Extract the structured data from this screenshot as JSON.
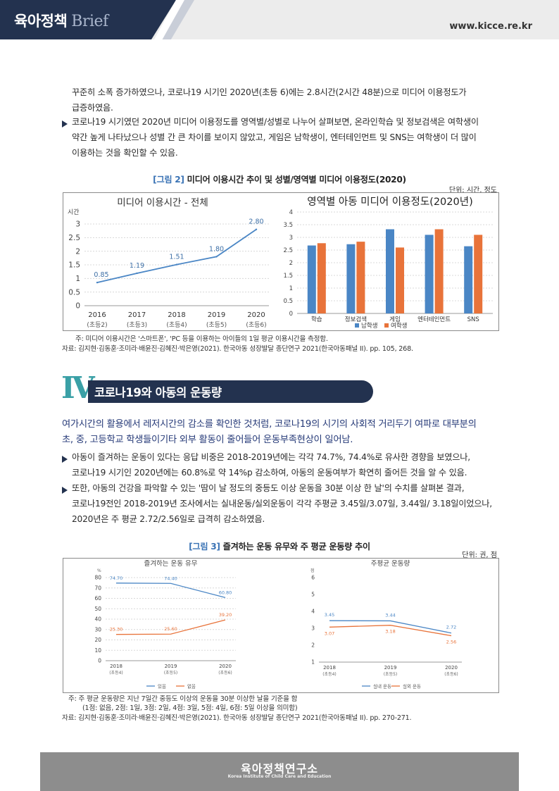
{
  "header": {
    "brand": "육아정책",
    "brand_sub": "Brief",
    "site_url": "www.kicce.re.kr"
  },
  "intro": {
    "line1": "꾸준히 소폭 증가하였으나, 코로나19 시기인 2020년(초등 6)에는 2.8시간(2시간 48분)으로 미디어 이용정도가",
    "line2": "급증하였음.",
    "bullet1": [
      "코로나19 시기였던 2020년 미디어 이용정도를 영역별/성별로 나누어 살펴보면, 온라인학습 및 정보검색은 여학생이",
      "약간 높게 나타났으나 성별 간 큰 차이를 보이지 않았고, 게임은 남학생이, 엔터테인먼트 및 SNS는 여학생이 더 많이",
      "이용하는 것을 확인할 수 있음."
    ]
  },
  "figure2": {
    "num": "[그림 2]",
    "title": "미디어 이용시간 추이 및 성별/영역별 미디어 이용정도(2020)",
    "unit": "단위: 시간, 정도",
    "note": "주: 미디어 이용시간은 '스마트폰', 'PC 등을 이용하는 아이들의 1일 평균 이용시간을 측정함.",
    "source": "자료: 김지현·김동훈·조미라·배윤진·김혜진·박은영(2021). 한국아동 성장발달 종단연구 2021(한국아동패널 II). pp. 105, 268."
  },
  "section": {
    "numeral": "Ⅳ",
    "title": "코로나19와 아동의 운동량",
    "lead": [
      "여가시간의 활용에서 레저시간의 감소를 확인한 것처럼, 코로나19의 시기의 사회적 거리두기 여파로 대부분의",
      "초, 중, 고등학교 학생들이기타 외부 활동이 줄어들어 운동부족현상이 일어남."
    ],
    "bullet1": [
      "아동이 즐겨하는 운동이 있다는 응답 비중은 2018-2019년에는 각각 74.7%, 74.4%로 유사한 경향을 보였으나,",
      "코로나19 시기인 2020년에는 60.8%로 약 14%p 감소하여, 아동의 운동여부가 확연히 줄어든 것을 알 수 있음."
    ],
    "bullet2": [
      "또한, 아동의 건강을 파악할 수 있는 '땀이 날 정도의 중등도 이상 운동을 30분 이상 한 날'의 수치를 살펴본 결과,",
      "코로나19전인 2018-2019년 조사에서는 실내운동/실외운동이 각각 주평균 3.45일/3.07일, 3.44일/ 3.18일이었으나,",
      "2020년은 주 평균 2.72/2.56일로 급격히 감소하였음."
    ]
  },
  "figure3": {
    "num": "[그림 3]",
    "title": "즐겨하는 운동 유무와 주 평균 운동량 추이",
    "unit": "단위: 권, 점",
    "note1": "주: 주 평균 운동량은 지난 7일간 중등도 이상의 운동을 30분 이상한 날을 기준을 함",
    "note2": "(1점: 없음, 2점: 1일, 3점: 2일, 4점: 3일, 5점: 4일, 6점: 5일 이상을 의미함)",
    "source": "자료: 김지현·김동훈·조미라·배윤진·김혜진·박은영(2021). 한국아동 성장발달 종단연구 2021(한국아동패널 II). pp. 270-271."
  },
  "footer": {
    "name": "육아정책연구소",
    "en": "Korea Institute of Child Care and Education"
  },
  "colors": {
    "navy": "#23324f",
    "blue": "#4a86c5",
    "orange": "#e8733a",
    "teal": "#3aa0a6"
  },
  "chart_data": [
    {
      "type": "line",
      "title": "미디어 이용시간 - 전체",
      "ylabel": "시간",
      "categories": [
        "2016",
        "2017",
        "2018",
        "2019",
        "2020"
      ],
      "category_sub": [
        "(초등2)",
        "(초등3)",
        "(초등4)",
        "(초등5)",
        "(초등6)"
      ],
      "series": [
        {
          "values": [
            0.85,
            1.19,
            1.51,
            1.8,
            2.8
          ]
        }
      ],
      "data_labels": [
        "0.85",
        "1.19",
        "1.51",
        "1.80",
        "2.80"
      ],
      "ylim": [
        0,
        3
      ],
      "yticks": [
        "0",
        "0.5",
        "1",
        "1.5",
        "2",
        "2.5",
        "3"
      ],
      "grid": true
    },
    {
      "type": "bar",
      "title": "영역별 아동 미디어 이용정도(2020년)",
      "categories": [
        "학습",
        "정보검색",
        "게임",
        "엔터테인먼트",
        "SNS"
      ],
      "series": [
        {
          "name": "남학생",
          "values": [
            2.68,
            2.73,
            3.32,
            3.1,
            2.65
          ]
        },
        {
          "name": "여학생",
          "values": [
            2.77,
            2.83,
            2.6,
            3.32,
            3.1
          ]
        }
      ],
      "ylim": [
        0,
        4
      ],
      "yticks": [
        "0",
        "0.5",
        "1",
        "1.5",
        "2",
        "2.5",
        "3",
        "3.5",
        "4"
      ],
      "legend": "bottom",
      "grid": true
    },
    {
      "type": "line",
      "title": "즐겨하는 운동 유무",
      "ylabel": "%",
      "categories": [
        "2018",
        "2019",
        "2020"
      ],
      "category_sub": [
        "(초등4)",
        "(초등5)",
        "(초등6)"
      ],
      "series": [
        {
          "name": "있음",
          "values": [
            74.7,
            74.4,
            60.8
          ],
          "labels": [
            "74.70",
            "74.40",
            "60.80"
          ]
        },
        {
          "name": "없음",
          "values": [
            25.3,
            25.6,
            39.2
          ],
          "labels": [
            "25.30",
            "25.60",
            "39.20"
          ]
        }
      ],
      "ylim": [
        0,
        80
      ],
      "yticks": [
        "0",
        "10",
        "20",
        "30",
        "40",
        "50",
        "60",
        "70",
        "80"
      ],
      "legend": "bottom",
      "grid": true
    },
    {
      "type": "line",
      "title": "주평균 운동량",
      "ylabel": "점",
      "categories": [
        "2018",
        "2019",
        "2020"
      ],
      "category_sub": [
        "(초등4)",
        "(초등5)",
        "(초등6)"
      ],
      "series": [
        {
          "name": "실내 운동",
          "values": [
            3.45,
            3.44,
            2.72
          ],
          "labels": [
            "3.45",
            "3.44",
            "2.72"
          ]
        },
        {
          "name": "실외 운동",
          "values": [
            3.07,
            3.18,
            2.56
          ],
          "labels": [
            "3.07",
            "3.18",
            "2.56"
          ]
        }
      ],
      "ylim": [
        1,
        6
      ],
      "yticks": [
        "1",
        "2",
        "3",
        "4",
        "5",
        "6"
      ],
      "legend": "bottom",
      "grid": false
    }
  ]
}
